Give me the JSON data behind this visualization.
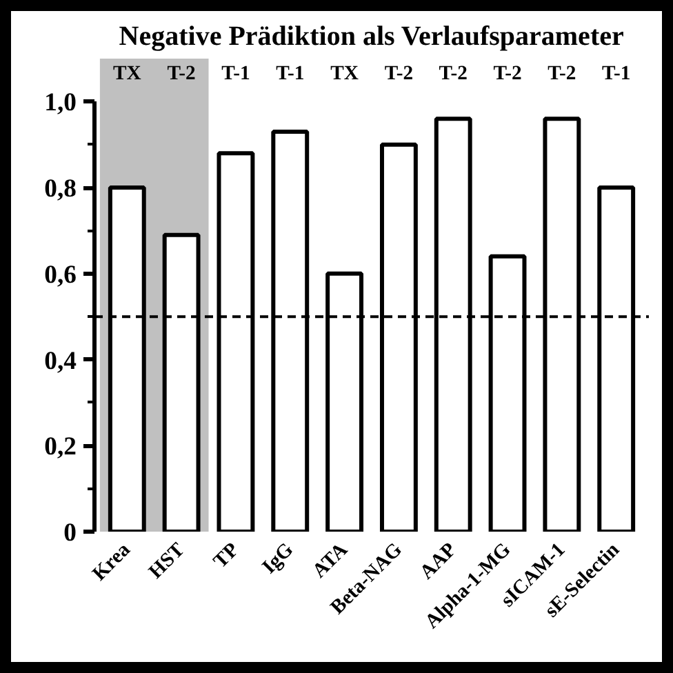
{
  "chart_data": {
    "type": "bar",
    "title": "Negative Prädiktion als Verlaufsparameter",
    "categories": [
      "Krea",
      "HST",
      "TP",
      "IgG",
      "ATA",
      "Beta-NAG",
      "AAP",
      "Alpha-1-MG",
      "sICAM-1",
      "sE-Selectin"
    ],
    "values": [
      0.8,
      0.69,
      0.88,
      0.93,
      0.6,
      0.9,
      0.96,
      0.64,
      0.96,
      0.8
    ],
    "color": "#ffffff",
    "ylim": [
      0,
      1.0
    ],
    "yticks": [
      {
        "value": 0,
        "label": "0"
      },
      {
        "value": 0.2,
        "label": "0,2"
      },
      {
        "value": 0.4,
        "label": "0,4"
      },
      {
        "value": 0.6,
        "label": "0,6"
      },
      {
        "value": 0.8,
        "label": "0,8"
      },
      {
        "value": 1.0,
        "label": "1,0"
      }
    ],
    "grid": false,
    "ref_lines": [
      {
        "axis": "y",
        "value": 0.5,
        "color": "#000000",
        "line_style": "dashed"
      }
    ],
    "bands": [
      {
        "axis": "x",
        "from": "Krea",
        "to": "HST",
        "color": "#c0c0c0"
      }
    ],
    "annotations": [
      "TX",
      "T-2",
      "T-1",
      "T-1",
      "TX",
      "T-2",
      "T-2",
      "T-2",
      "T-2",
      "T-1"
    ]
  }
}
